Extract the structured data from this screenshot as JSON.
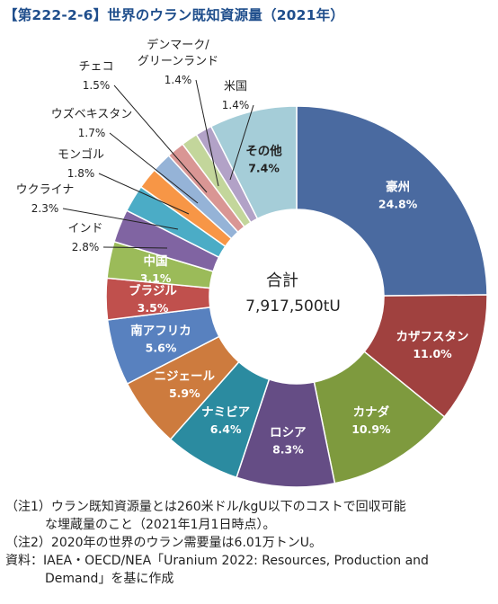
{
  "title": "【第222-2-6】世界のウラン既知資源量（2021年）",
  "chart_data": {
    "type": "pie",
    "style": "donut",
    "center_label": "合計",
    "center_value": "7,917,500tU",
    "slices": [
      {
        "label": "豪州",
        "value": 24.8,
        "pct_label": "24.8%",
        "color": "#4a6aa0",
        "label_mode": "inside"
      },
      {
        "label": "カザフスタン",
        "value": 11.0,
        "pct_label": "11.0%",
        "color": "#a0413f",
        "label_mode": "inside"
      },
      {
        "label": "カナダ",
        "value": 10.9,
        "pct_label": "10.9%",
        "color": "#7e9a3e",
        "label_mode": "inside"
      },
      {
        "label": "ロシア",
        "value": 8.3,
        "pct_label": "8.3%",
        "color": "#654d85",
        "label_mode": "inside"
      },
      {
        "label": "ナミビア",
        "value": 6.4,
        "pct_label": "6.4%",
        "color": "#2b8ba0",
        "label_mode": "inside"
      },
      {
        "label": "ニジェール",
        "value": 5.9,
        "pct_label": "5.9%",
        "color": "#cd7b3e",
        "label_mode": "inside"
      },
      {
        "label": "南アフリカ",
        "value": 5.6,
        "pct_label": "5.6%",
        "color": "#5881bf",
        "label_mode": "inside"
      },
      {
        "label": "ブラジル",
        "value": 3.5,
        "pct_label": "3.5%",
        "color": "#c0504d",
        "label_mode": "inside"
      },
      {
        "label": "中国",
        "value": 3.1,
        "pct_label": "3.1%",
        "color": "#9bbb59",
        "label_mode": "inside"
      },
      {
        "label": "インド",
        "value": 2.8,
        "pct_label": "2.8%",
        "color": "#8064a2",
        "label_mode": "outside"
      },
      {
        "label": "ウクライナ",
        "value": 2.3,
        "pct_label": "2.3%",
        "color": "#4bacc6",
        "label_mode": "outside"
      },
      {
        "label": "モンゴル",
        "value": 1.8,
        "pct_label": "1.8%",
        "color": "#f79646",
        "label_mode": "outside"
      },
      {
        "label": "ウズベキスタン",
        "value": 1.7,
        "pct_label": "1.7%",
        "color": "#95b3d7",
        "label_mode": "outside"
      },
      {
        "label": "チェコ",
        "value": 1.5,
        "pct_label": "1.5%",
        "color": "#d99694",
        "label_mode": "outside"
      },
      {
        "label": "デンマーク/\nグリーンランド",
        "value": 1.4,
        "pct_label": "1.4%",
        "color": "#c3d69b",
        "label_mode": "outside"
      },
      {
        "label": "米国",
        "value": 1.4,
        "pct_label": "1.4%",
        "color": "#b2a2c7",
        "label_mode": "outside"
      },
      {
        "label": "その他",
        "value": 7.4,
        "pct_label": "7.4%",
        "color": "#a5cdd8",
        "label_mode": "inside_dark"
      }
    ]
  },
  "notes": {
    "note1_a": "（注1）ウラン既知資源量とは260米ドル/kgU以下のコストで回収可能",
    "note1_b": "な埋蔵量のこと（2021年1月1日時点）。",
    "note2": "（注2）2020年の世界のウラン需要量は6.01万トンU。",
    "source_a": "資料：IAEA・OECD/NEA「Uranium 2022: Resources, Production and",
    "source_b": "Demand」を基に作成"
  }
}
